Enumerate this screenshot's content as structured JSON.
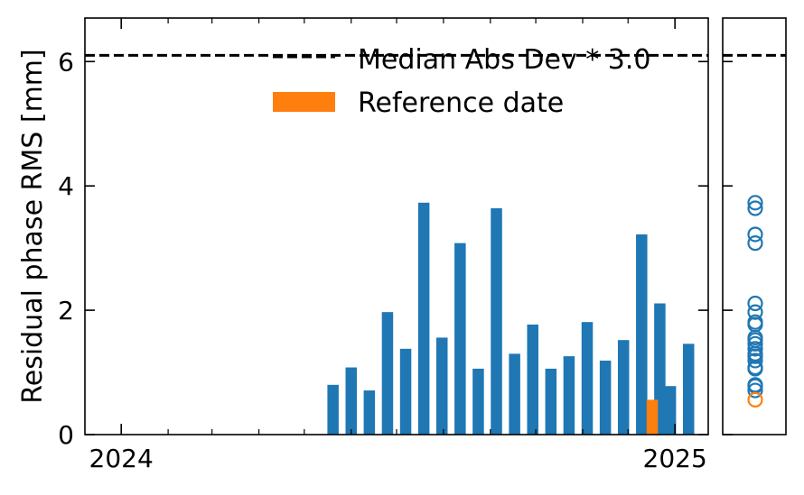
{
  "chart_data": [
    {
      "type": "bar",
      "ylabel": "Residual phase RMS [mm]",
      "ylim": [
        0,
        6.7
      ],
      "yticks": [
        0,
        2,
        4,
        6
      ],
      "ytick_labels": [
        "0",
        "2",
        "4",
        "6"
      ],
      "xlim": [
        "2023-12-08",
        "2025-01-23"
      ],
      "xticks_major": [
        "2024-01-01",
        "2025-01-01"
      ],
      "xtick_labels": [
        "2024",
        "2025"
      ],
      "xticks_minor": [
        "2024-02-01",
        "2024-03-01",
        "2024-04-01",
        "2024-05-01",
        "2024-06-01",
        "2024-07-01",
        "2024-08-01",
        "2024-09-01",
        "2024-10-01",
        "2024-11-01",
        "2024-12-01"
      ],
      "grid": false,
      "legend_position": "upper-right",
      "colors": {
        "bars": "#1f77b4",
        "reference": "#ff7f0e",
        "threshold": "#000000"
      },
      "threshold": {
        "value": 6.1,
        "name": "Median Abs Dev * 3.0"
      },
      "reference": {
        "name": "Reference date",
        "date": "2024-12-17",
        "value": 0.56
      },
      "series": [
        {
          "x": [
            "2024-05-20",
            "2024-06-01",
            "2024-06-13",
            "2024-06-25",
            "2024-07-07",
            "2024-07-19",
            "2024-07-31",
            "2024-08-12",
            "2024-08-24",
            "2024-09-05",
            "2024-09-17",
            "2024-09-29",
            "2024-10-11",
            "2024-10-23",
            "2024-11-04",
            "2024-11-16",
            "2024-11-28",
            "2024-12-10",
            "2024-12-22",
            "2024-12-29",
            "2025-01-10"
          ],
          "values": [
            0.8,
            1.08,
            0.71,
            1.97,
            1.38,
            3.73,
            1.56,
            3.08,
            1.06,
            3.64,
            1.3,
            1.77,
            1.06,
            1.26,
            1.81,
            1.19,
            1.52,
            3.22,
            2.11,
            0.78,
            1.46
          ],
          "is_reference": [
            false,
            false,
            false,
            false,
            false,
            false,
            false,
            false,
            false,
            false,
            false,
            false,
            false,
            false,
            false,
            false,
            false,
            false,
            false,
            false,
            false
          ]
        }
      ]
    },
    {
      "type": "scatter",
      "ylim": [
        0,
        6.7
      ],
      "threshold": 6.1,
      "marker": "open-circle",
      "values": [
        0.8,
        1.08,
        0.71,
        1.97,
        1.38,
        3.73,
        1.56,
        3.08,
        1.06,
        3.64,
        1.3,
        1.77,
        1.06,
        1.26,
        1.81,
        1.19,
        1.52,
        3.22,
        2.11,
        0.78,
        1.46
      ],
      "reference_value": 0.56
    }
  ]
}
